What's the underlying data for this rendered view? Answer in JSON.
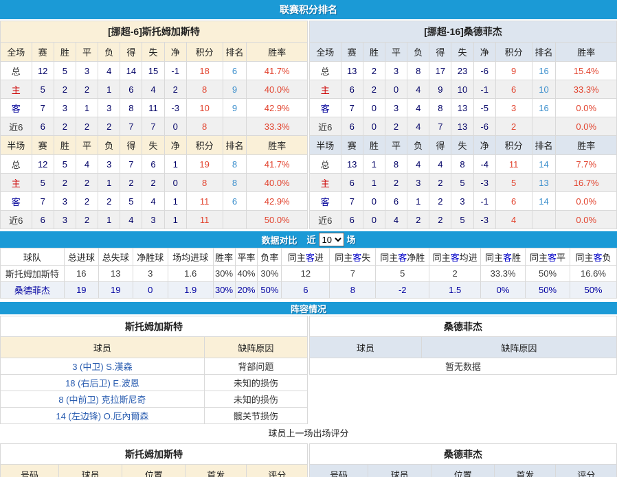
{
  "bars": {
    "standings": "联赛积分排名",
    "compare": "数据对比",
    "lineup": "阵容情况"
  },
  "compare_filter": {
    "prefix": "近",
    "selected": "10",
    "suffix": "场"
  },
  "columns": {
    "stats": [
      "赛",
      "胜",
      "平",
      "负",
      "得",
      "失",
      "净",
      "积分",
      "排名",
      "胜率"
    ],
    "scope_full": "全场",
    "scope_half": "半场"
  },
  "teams": [
    {
      "title": "[挪超-6]斯托姆加斯特",
      "theme": "cream",
      "full": [
        {
          "label": "总",
          "cells": [
            "12",
            "5",
            "3",
            "4",
            "14",
            "15",
            "-1"
          ],
          "points": "18",
          "rank": "6",
          "rate": "41.7%"
        },
        {
          "label": "主",
          "cells": [
            "5",
            "2",
            "2",
            "1",
            "6",
            "4",
            "2"
          ],
          "points": "8",
          "rank": "9",
          "rate": "40.0%"
        },
        {
          "label": "客",
          "cells": [
            "7",
            "3",
            "1",
            "3",
            "8",
            "11",
            "-3"
          ],
          "points": "10",
          "rank": "9",
          "rate": "42.9%"
        },
        {
          "label": "近6",
          "cells": [
            "6",
            "2",
            "2",
            "2",
            "7",
            "7",
            "0"
          ],
          "points": "8",
          "rank": "",
          "rate": "33.3%"
        }
      ],
      "half": [
        {
          "label": "总",
          "cells": [
            "12",
            "5",
            "4",
            "3",
            "7",
            "6",
            "1"
          ],
          "points": "19",
          "rank": "8",
          "rate": "41.7%"
        },
        {
          "label": "主",
          "cells": [
            "5",
            "2",
            "2",
            "1",
            "2",
            "2",
            "0"
          ],
          "points": "8",
          "rank": "8",
          "rate": "40.0%"
        },
        {
          "label": "客",
          "cells": [
            "7",
            "3",
            "2",
            "2",
            "5",
            "4",
            "1"
          ],
          "points": "11",
          "rank": "6",
          "rate": "42.9%"
        },
        {
          "label": "近6",
          "cells": [
            "6",
            "3",
            "2",
            "1",
            "4",
            "3",
            "1"
          ],
          "points": "11",
          "rank": "",
          "rate": "50.0%"
        }
      ]
    },
    {
      "title": "[挪超-16]桑德菲杰",
      "theme": "blue",
      "full": [
        {
          "label": "总",
          "cells": [
            "13",
            "2",
            "3",
            "8",
            "17",
            "23",
            "-6"
          ],
          "points": "9",
          "rank": "16",
          "rate": "15.4%"
        },
        {
          "label": "主",
          "cells": [
            "6",
            "2",
            "0",
            "4",
            "9",
            "10",
            "-1"
          ],
          "points": "6",
          "rank": "10",
          "rate": "33.3%"
        },
        {
          "label": "客",
          "cells": [
            "7",
            "0",
            "3",
            "4",
            "8",
            "13",
            "-5"
          ],
          "points": "3",
          "rank": "16",
          "rate": "0.0%"
        },
        {
          "label": "近6",
          "cells": [
            "6",
            "0",
            "2",
            "4",
            "7",
            "13",
            "-6"
          ],
          "points": "2",
          "rank": "",
          "rate": "0.0%"
        }
      ],
      "half": [
        {
          "label": "总",
          "cells": [
            "13",
            "1",
            "8",
            "4",
            "4",
            "8",
            "-4"
          ],
          "points": "11",
          "rank": "14",
          "rate": "7.7%"
        },
        {
          "label": "主",
          "cells": [
            "6",
            "1",
            "2",
            "3",
            "2",
            "5",
            "-3"
          ],
          "points": "5",
          "rank": "13",
          "rate": "16.7%"
        },
        {
          "label": "客",
          "cells": [
            "7",
            "0",
            "6",
            "1",
            "2",
            "3",
            "-1"
          ],
          "points": "6",
          "rank": "14",
          "rate": "0.0%"
        },
        {
          "label": "近6",
          "cells": [
            "6",
            "0",
            "4",
            "2",
            "2",
            "5",
            "-3"
          ],
          "points": "4",
          "rank": "",
          "rate": "0.0%"
        }
      ]
    }
  ],
  "compare": {
    "headers": [
      "球队",
      "总进球",
      "总失球",
      "净胜球",
      "场均进球",
      "胜率",
      "平率",
      "负率",
      "同主客进",
      "同主客失",
      "同主客净胜",
      "同主客均进",
      "同主客胜",
      "同主客平",
      "同主客负"
    ],
    "rows": [
      {
        "team": "斯托姆加斯特",
        "values": [
          "16",
          "13",
          "3",
          "1.6",
          "30%",
          "40%",
          "30%",
          "12",
          "7",
          "5",
          "2",
          "33.3%",
          "50%",
          "16.6%"
        ]
      },
      {
        "team": "桑德菲杰",
        "values": [
          "19",
          "19",
          "0",
          "1.9",
          "30%",
          "20%",
          "50%",
          "6",
          "8",
          "-2",
          "1.5",
          "0%",
          "50%",
          "50%"
        ]
      }
    ]
  },
  "lineup": {
    "left": {
      "title": "斯托姆加斯特",
      "cols": [
        "球员",
        "缺阵原因"
      ],
      "players": [
        {
          "name": "3 (中卫) S.漢森",
          "reason": "背部问题"
        },
        {
          "name": "18 (右后卫) E.波恩",
          "reason": "未知的损伤"
        },
        {
          "name": "8 (中前卫) 克拉斯尼奇",
          "reason": "未知的损伤"
        },
        {
          "name": "14 (左边锋) O.厄內爾森",
          "reason": "髋关节损伤"
        }
      ]
    },
    "right": {
      "title": "桑德菲杰",
      "cols": [
        "球员",
        "缺阵原因"
      ],
      "empty": "暂无数据"
    }
  },
  "rating": {
    "caption": "球员上一场出场评分",
    "left": {
      "title": "斯托姆加斯特",
      "cols": [
        "号码",
        "球员",
        "位置",
        "首发",
        "评分"
      ]
    },
    "right": {
      "title": "桑德菲杰",
      "cols": [
        "号码",
        "球员",
        "位置",
        "首发",
        "评分"
      ]
    }
  },
  "colors": {
    "bar_blue": "#1b9ad6",
    "cream_header": "#faf0d8",
    "blue_header": "#dde5ef",
    "points_red": "#e2432e",
    "rank_blue": "#3a8ecc",
    "navy_number": "#000066",
    "link_blue": "#2a5db0"
  }
}
